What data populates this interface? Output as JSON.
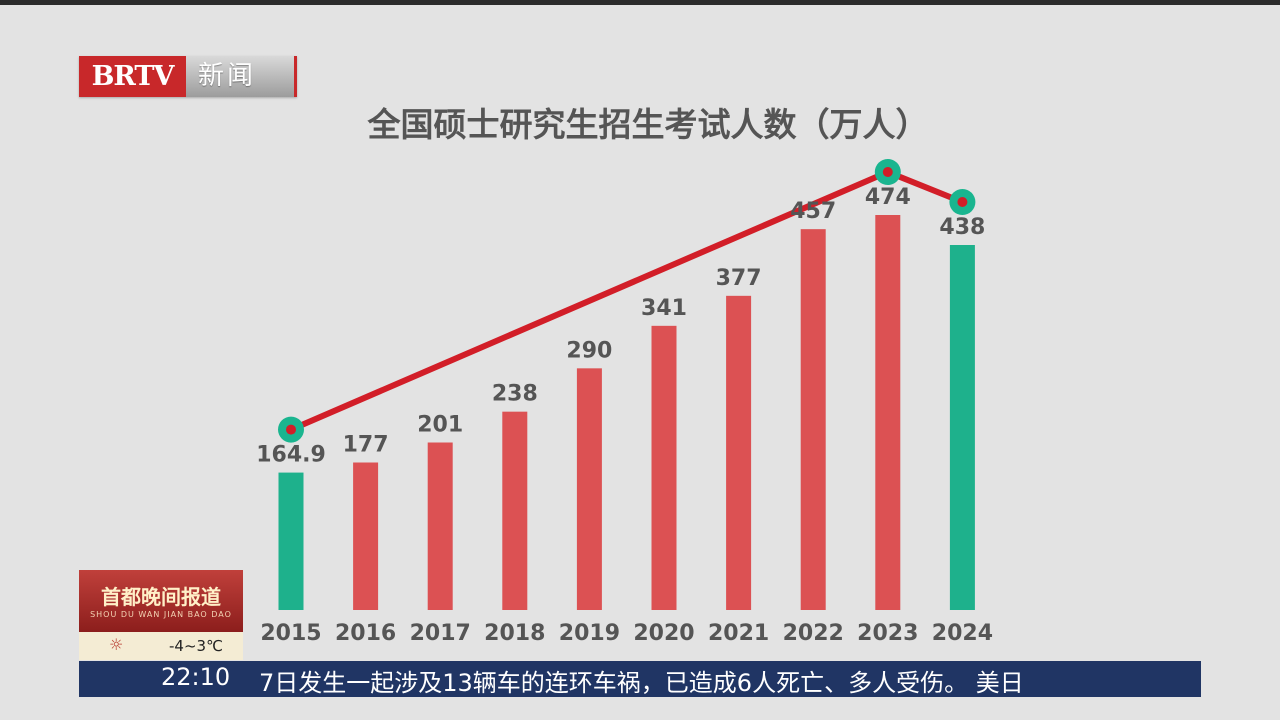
{
  "channel": {
    "brand": "BRTV",
    "section": "新闻"
  },
  "program": {
    "title": "首都晚间报道",
    "subtitle": "SHOU DU WAN JIAN BAO DAO"
  },
  "weather": {
    "icon": "sun-icon",
    "temp": "-4~3℃"
  },
  "ticker": {
    "time": "22:10",
    "text": "7日发生一起涉及13辆车的连环车祸，已造成6人死亡、多人受伤。   美日"
  },
  "colors": {
    "bar_red": "#dc5153",
    "bar_green": "#1eb18c",
    "line_red": "#d21e28",
    "marker_teal": "#1ab58f"
  },
  "chart_data": {
    "type": "bar",
    "title": "全国硕士研究生招生考试人数（万人）",
    "categories": [
      "2015",
      "2016",
      "2017",
      "2018",
      "2019",
      "2020",
      "2021",
      "2022",
      "2023",
      "2024"
    ],
    "values": [
      164.9,
      177,
      201,
      238,
      290,
      341,
      377,
      457,
      474,
      438
    ],
    "value_labels": [
      "164.9",
      "177",
      "201",
      "238",
      "290",
      "341",
      "377",
      "457",
      "474",
      "438"
    ],
    "highlight_categories": [
      "2015",
      "2024"
    ],
    "trend_line_points": [
      "2015",
      "2023",
      "2024"
    ],
    "ylim": [
      0,
      474
    ],
    "xlabel": "",
    "ylabel": "",
    "grid": false
  }
}
